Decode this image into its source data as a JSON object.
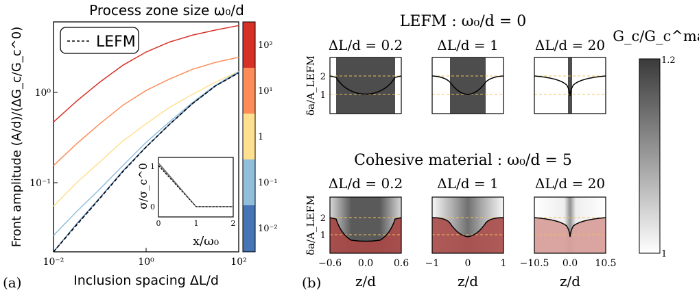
{
  "panel_a": {
    "panel_label": "(a)",
    "title": "Process zone size ω₀/d",
    "xlabel": "Inclusion spacing ΔL/d",
    "ylabel": "Front amplitude (A/d)/(ΔG_c/G_c^0)",
    "legend": "LEFM",
    "x_ticks": [
      "10⁻²",
      "10⁰",
      "10²"
    ],
    "y_ticks": [
      "10⁰",
      "10⁻¹"
    ],
    "colorbar_ticks": [
      "10²",
      "10¹",
      "1",
      "10⁻¹",
      "10⁻²"
    ],
    "colorbar_colors": [
      "#d73027",
      "#fc8d59",
      "#fee090",
      "#91bfdb",
      "#4575b4"
    ],
    "inset": {
      "xlabel": "x/ω₀",
      "ylabel": "σ/σ_c^0",
      "x_ticks": [
        "0",
        "1",
        "2"
      ],
      "y_ticks": [
        "0",
        "1"
      ]
    }
  },
  "panel_b": {
    "panel_label": "(b)",
    "row1_title": "LEFM : ω₀/d = 0",
    "row2_title": "Cohesive material : ω₀/d = 5",
    "ylabel": "δa/A_LEFM",
    "xlabel": "z/d",
    "columns": [
      {
        "title": "ΔL/d = 0.2",
        "ticks": [
          "−0.6",
          "0.0",
          "0.6"
        ]
      },
      {
        "title": "ΔL/d = 1",
        "ticks": [
          "−1",
          "0",
          "1"
        ]
      },
      {
        "title": "ΔL/d = 20",
        "ticks": [
          "−10.5",
          "0.0",
          "10.5"
        ]
      }
    ],
    "y_ticks": [
      "1",
      "2"
    ],
    "colorbar_label": "G_c/G_c^mat",
    "colorbar_ticks": [
      "1.2",
      "1"
    ]
  },
  "chart_data": {
    "type": "line",
    "title": "Process zone size ω₀/d",
    "xlabel": "Inclusion spacing ΔL/d",
    "ylabel": "Front amplitude (A/d)/(ΔG_c/G_c^0)",
    "x_scale": "log",
    "y_scale": "log",
    "xlim": [
      0.01,
      100
    ],
    "ylim": [
      0.015,
      7
    ],
    "x": [
      0.01,
      0.0316,
      0.1,
      0.316,
      1,
      3.16,
      10,
      31.6,
      100
    ],
    "series": [
      {
        "name": "10²",
        "color": "#d73027",
        "values": [
          0.47,
          0.8,
          1.3,
          2.0,
          2.8,
          3.6,
          4.3,
          4.9,
          5.5
        ]
      },
      {
        "name": "10¹",
        "color": "#fc8d59",
        "values": [
          0.155,
          0.27,
          0.45,
          0.72,
          1.05,
          1.4,
          1.8,
          2.15,
          2.45
        ]
      },
      {
        "name": "1",
        "color": "#fee090",
        "values": [
          0.055,
          0.1,
          0.17,
          0.29,
          0.45,
          0.68,
          0.95,
          1.3,
          1.7
        ]
      },
      {
        "name": "10⁻¹",
        "color": "#91bfdb",
        "values": [
          0.026,
          0.048,
          0.085,
          0.155,
          0.28,
          0.47,
          0.77,
          1.2,
          1.7
        ]
      },
      {
        "name": "10⁻²",
        "color": "#4575b4",
        "values": [
          0.0165,
          0.035,
          0.068,
          0.135,
          0.25,
          0.44,
          0.75,
          1.18,
          1.65
        ]
      },
      {
        "name": "LEFM",
        "color": "#000000",
        "dashed": true,
        "values": [
          0.0155,
          0.034,
          0.067,
          0.133,
          0.248,
          0.44,
          0.75,
          1.18,
          1.65
        ]
      }
    ],
    "legend_position": "top-left",
    "grid": false
  }
}
